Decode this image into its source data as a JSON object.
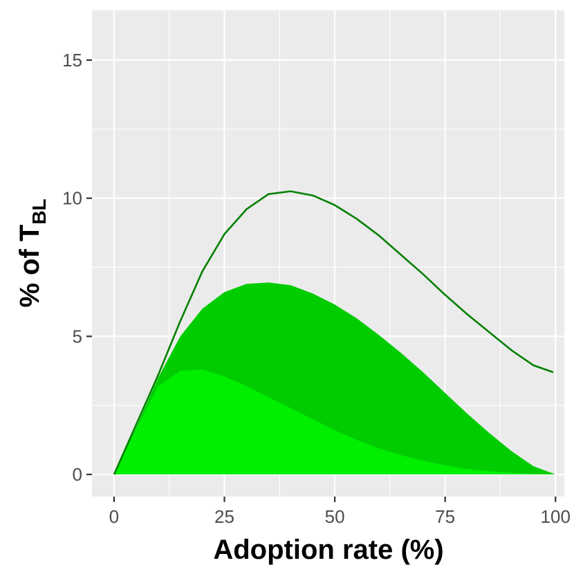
{
  "chart_data": {
    "type": "area",
    "title": "",
    "xlabel": "Adoption rate (%)",
    "ylabel": {
      "main": "% of T",
      "subscript": "BL"
    },
    "xlim": [
      -5,
      102
    ],
    "ylim": [
      -0.8,
      16.8
    ],
    "x_ticks": [
      0,
      25,
      50,
      75,
      100
    ],
    "y_ticks": [
      0,
      5,
      10,
      15
    ],
    "grid": true,
    "legend": "none",
    "x": [
      0,
      5,
      10,
      15,
      20,
      25,
      30,
      35,
      40,
      45,
      50,
      55,
      60,
      65,
      70,
      75,
      80,
      85,
      90,
      95,
      100
    ],
    "series": [
      {
        "kind": "area",
        "color": "#00cc00",
        "values": [
          0,
          1.7,
          3.5,
          5.0,
          6.0,
          6.6,
          6.9,
          6.95,
          6.85,
          6.55,
          6.15,
          5.65,
          5.05,
          4.4,
          3.7,
          2.95,
          2.2,
          1.5,
          0.85,
          0.3,
          0
        ]
      },
      {
        "kind": "area",
        "color": "#00ee00",
        "values": [
          0,
          1.65,
          3.2,
          3.75,
          3.8,
          3.55,
          3.2,
          2.8,
          2.4,
          2.0,
          1.6,
          1.25,
          0.95,
          0.7,
          0.5,
          0.33,
          0.2,
          0.12,
          0.06,
          0.02,
          0
        ]
      },
      {
        "kind": "line",
        "color": "#008000",
        "values": [
          0,
          1.8,
          3.6,
          5.55,
          7.35,
          8.7,
          9.6,
          10.15,
          10.25,
          10.1,
          9.75,
          9.25,
          8.65,
          7.95,
          7.25,
          6.5,
          5.8,
          5.15,
          4.5,
          3.95,
          3.7
        ],
        "x_override": [
          0,
          5,
          10,
          15,
          20,
          25,
          30,
          35,
          40,
          45,
          50,
          55,
          60,
          65,
          70,
          75,
          80,
          85,
          90,
          95,
          99.5
        ]
      }
    ]
  }
}
